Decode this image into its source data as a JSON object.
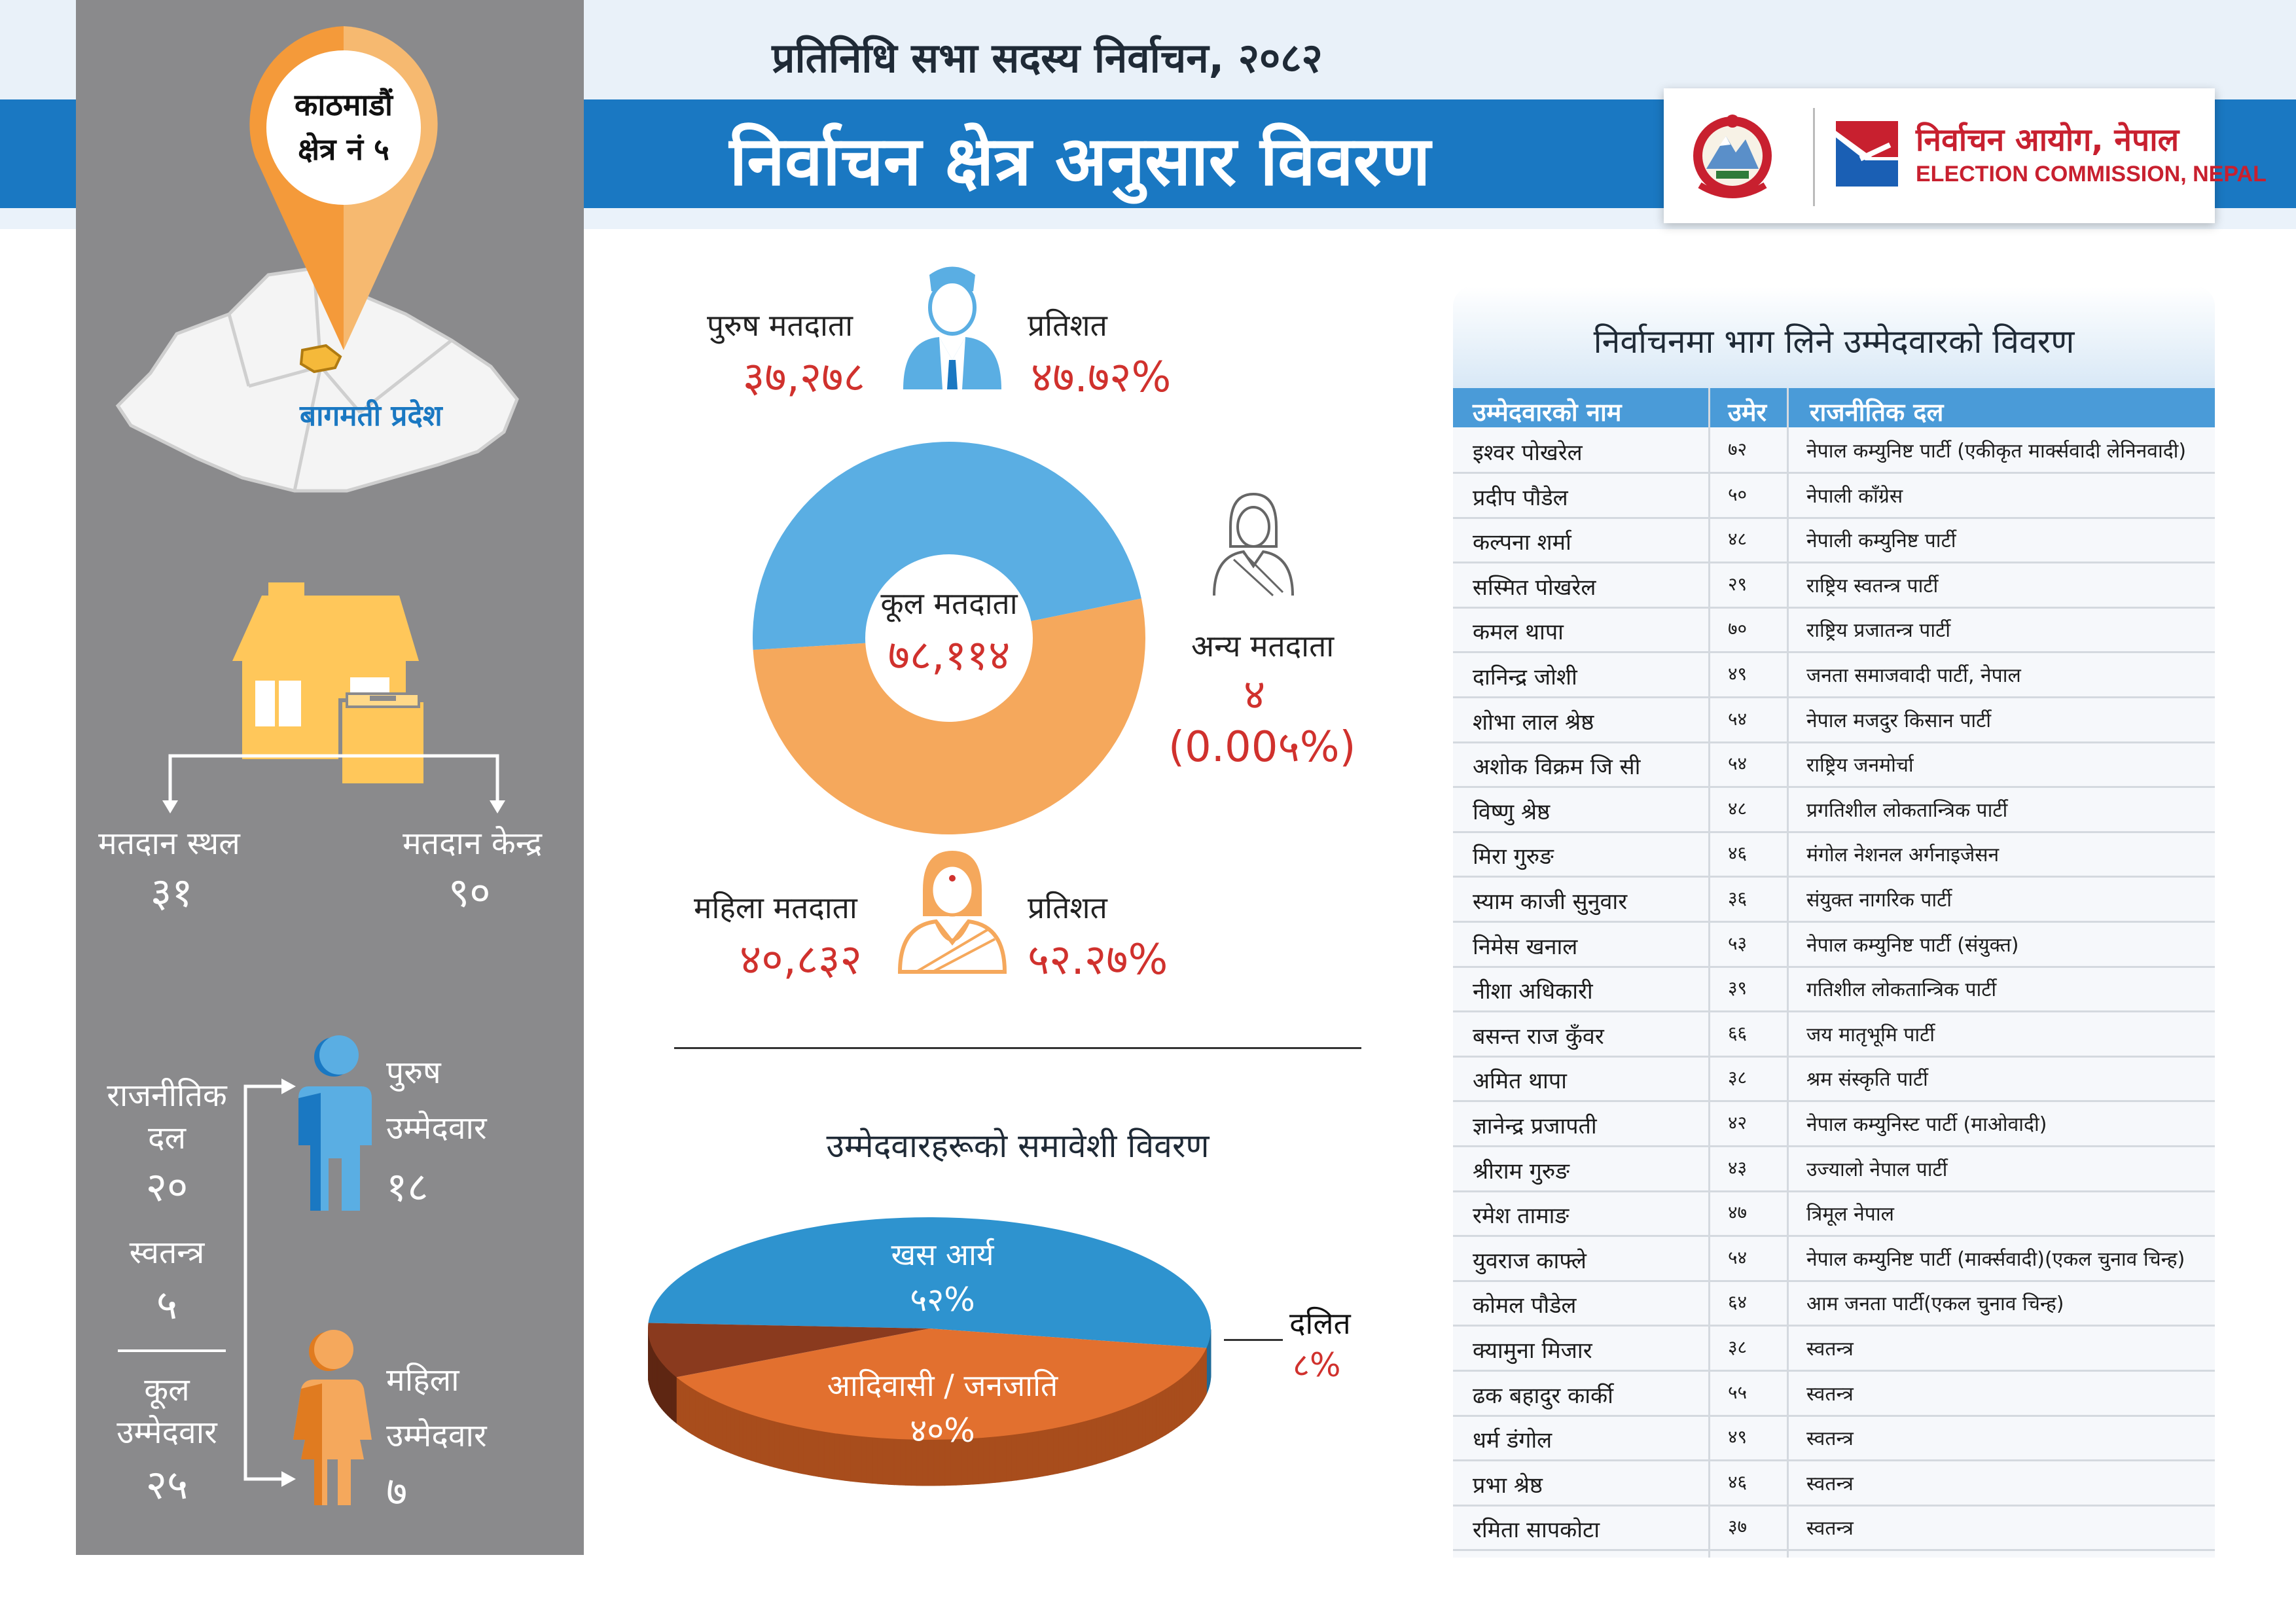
{
  "header": {
    "subtitle": "प्रतिनिधि सभा सदस्य निर्वाचन, २०८२",
    "title": "निर्वाचन क्षेत्र अनुसार विवरण",
    "commission_np": "निर्वाचन आयोग, नेपाल",
    "commission_en": "ELECTION COMMISSION, NEPAL"
  },
  "colors": {
    "header_blue": "#1a78c2",
    "left_panel": "#8a8a8c",
    "pin_orange": "#f49a3a",
    "male_blue": "#5aaee3",
    "female_orange": "#f5a85c",
    "accent_red": "#d0312d",
    "house_yellow": "#ffc75a"
  },
  "left": {
    "district": "काठमाडौं",
    "constituency": "क्षेत्र नं ५",
    "province": "बागमती प्रदेश",
    "polling_place_label": "मतदान स्थल",
    "polling_place_value": "३१",
    "polling_center_label": "मतदान केन्द्र",
    "polling_center_value": "९०",
    "parties_label_1": "राजनीतिक",
    "parties_label_2": "दल",
    "parties_value": "२०",
    "independent_label": "स्वतन्त्र",
    "independent_value": "५",
    "total_label_1": "कूल",
    "total_label_2": "उम्मेदवार",
    "total_value": "२५",
    "male_cand_label_1": "पुरुष",
    "male_cand_label_2": "उम्मेदवार",
    "male_cand_value": "१८",
    "female_cand_label_1": "महिला",
    "female_cand_label_2": "उम्मेदवार",
    "female_cand_value": "७"
  },
  "voters": {
    "male_label": "पुरुष मतदाता",
    "male_value": "३७,२७८",
    "male_pct_label": "प्रतिशत",
    "male_pct": "४७.७२%",
    "total_label": "कूल मतदाता",
    "total_value": "७८,११४",
    "other_label": "अन्य मतदाता",
    "other_value": "४",
    "other_pct": "(0.00५%)",
    "female_label": "महिला मतदाता",
    "female_value": "४०,८३२",
    "female_pct_label": "प्रतिशत",
    "female_pct": "५२.२७%"
  },
  "inclusion": {
    "title": "उम्मेदवारहरूको समावेशी विवरण",
    "khas_label": "खस आर्य",
    "khas_pct": "५२%",
    "janajati_label": "आदिवासी / जनजाति",
    "janajati_pct": "४०%",
    "dalit_label": "दलित",
    "dalit_pct": "८%"
  },
  "chart_data": [
    {
      "type": "pie",
      "title": "",
      "categories": [
        "पुरुष मतदाता",
        "महिला मतदाता",
        "अन्य मतदाता"
      ],
      "values": [
        47.72,
        52.27,
        0.005
      ],
      "counts": [
        37278,
        40832,
        4
      ],
      "total": 78114,
      "donut": true
    },
    {
      "type": "pie",
      "title": "उम्मेदवारहरूको समावेशी विवरण",
      "categories": [
        "खस आर्य",
        "आदिवासी / जनजाति",
        "दलित"
      ],
      "values": [
        52,
        40,
        8
      ]
    }
  ],
  "table": {
    "title": "निर्वाचनमा भाग लिने उम्मेदवारको विवरण",
    "columns": [
      "उम्मेदवारको नाम",
      "उमेर",
      "राजनीतिक दल"
    ],
    "rows": [
      [
        "इश्वर पोखरेल",
        "७२",
        "नेपाल कम्युनिष्ट पार्टी (एकीकृत मार्क्सवादी लेनिनवादी)"
      ],
      [
        "प्रदीप पौडेल",
        "५०",
        "नेपाली काँग्रेस"
      ],
      [
        "कल्पना शर्मा",
        "४८",
        "नेपाली कम्युनिष्ट पार्टी"
      ],
      [
        "सस्मित पोखरेल",
        "२९",
        "राष्ट्रिय स्वतन्त्र पार्टी"
      ],
      [
        "कमल थापा",
        "७०",
        "राष्ट्रिय प्रजातन्त्र पार्टी"
      ],
      [
        "दानिन्द्र जोशी",
        "४९",
        "जनता समाजवादी पार्टी, नेपाल"
      ],
      [
        "शोभा लाल श्रेष्ठ",
        "५४",
        "नेपाल मजदुर किसान पार्टी"
      ],
      [
        "अशोक विक्रम जि सी",
        "५४",
        "राष्ट्रिय जनमोर्चा"
      ],
      [
        "विष्णु श्रेष्ठ",
        "४८",
        "प्रगतिशील लोकतान्त्रिक पार्टी"
      ],
      [
        "मिरा गुरुङ",
        "४६",
        "मंगोल नेशनल अर्गनाइजेसन"
      ],
      [
        "स्याम काजी सुनुवार",
        "३६",
        "संयुक्त नागरिक पार्टी"
      ],
      [
        "निमेस खनाल",
        "५३",
        "नेपाल कम्युनिष्ट पार्टी (संयुक्त)"
      ],
      [
        "नीशा अधिकारी",
        "३९",
        "गतिशील लोकतान्त्रिक पार्टी"
      ],
      [
        "बसन्त राज कुँवर",
        "६६",
        "जय मातृभूमि पार्टी"
      ],
      [
        "अमित थापा",
        "३८",
        "श्रम संस्कृति पार्टी"
      ],
      [
        "ज्ञानेन्द्र प्रजापती",
        "४२",
        "नेपाल कम्युनिस्ट पार्टी (माओवादी)"
      ],
      [
        "श्रीराम गुरुङ",
        "४३",
        "उज्यालो नेपाल पार्टी"
      ],
      [
        "रमेश तामाङ",
        "४७",
        "त्रिमूल नेपाल"
      ],
      [
        "युवराज काफ्ले",
        "५४",
        "नेपाल कम्युनिष्ट पार्टी (मार्क्सवादी)(एकल चुनाव चिन्ह)"
      ],
      [
        "कोमल पौडेल",
        "६४",
        "आम जनता पार्टी(एकल चुनाव चिन्ह)"
      ],
      [
        "क्यामुना मिजार",
        "३८",
        "स्वतन्त्र"
      ],
      [
        "ढक बहादुर कार्की",
        "५५",
        "स्वतन्त्र"
      ],
      [
        "धर्म डंगोल",
        "४९",
        "स्वतन्त्र"
      ],
      [
        "प्रभा श्रेष्ठ",
        "४६",
        "स्वतन्त्र"
      ],
      [
        "रमिता सापकोटा",
        "३७",
        "स्वतन्त्र"
      ]
    ]
  }
}
